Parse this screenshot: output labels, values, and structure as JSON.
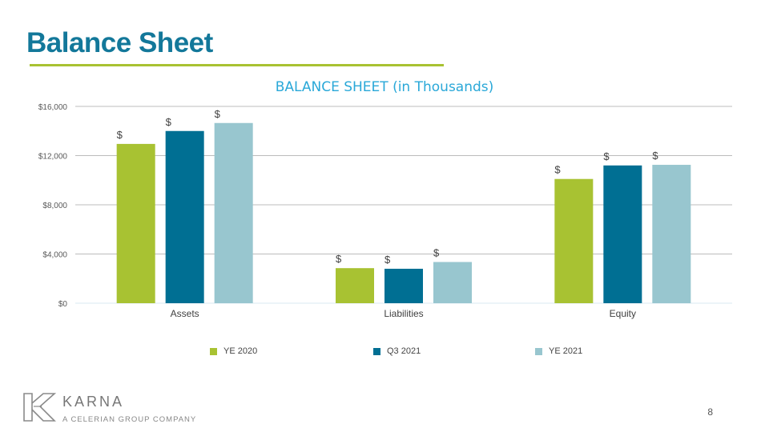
{
  "slide": {
    "title": "Balance Sheet",
    "page_number": "8"
  },
  "logo": {
    "name": "KARNA",
    "tagline": "A CELERIAN GROUP COMPANY"
  },
  "colors": {
    "title": "#13789a",
    "title_rule": "#a8c232",
    "chart_title": "#2aa8d8",
    "gridline": "#a6a6a6",
    "baseline": "#d9eaf0"
  },
  "chart_data": {
    "type": "bar",
    "title": "BALANCE SHEET (in Thousands)",
    "categories": [
      "Assets",
      "Liabilities",
      "Equity"
    ],
    "series": [
      {
        "name": "YE 2020",
        "color": "#a8c232",
        "values": [
          12950,
          2850,
          10100
        ],
        "labels": [
          "$",
          "$",
          "$"
        ]
      },
      {
        "name": "Q3 2021",
        "color": "#006f93",
        "values": [
          14000,
          2800,
          11200
        ],
        "labels": [
          "$",
          "$",
          "$"
        ]
      },
      {
        "name": "YE 2021",
        "color": "#98c6cf",
        "values": [
          14650,
          3350,
          11250
        ],
        "labels": [
          "$",
          "$",
          "$"
        ]
      }
    ],
    "ylim": [
      0,
      16000
    ],
    "yticks": [
      0,
      4000,
      8000,
      12000,
      16000
    ],
    "ytick_labels": [
      "$0",
      "$4,000",
      "$8,000",
      "$12,000",
      "$16,000"
    ],
    "xlabel": "",
    "ylabel": "",
    "grid": true,
    "legend_position": "bottom"
  }
}
